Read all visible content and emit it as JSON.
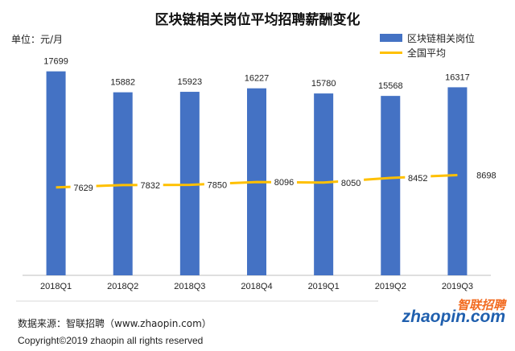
{
  "chart_data": {
    "type": "bar",
    "title": "区块链相关岗位平均招聘薪酬变化",
    "unit_label": "单位：元/月",
    "categories": [
      "2018Q1",
      "2018Q2",
      "2018Q3",
      "2018Q4",
      "2019Q1",
      "2019Q2",
      "2019Q3"
    ],
    "series": [
      {
        "name": "区块链相关岗位",
        "type": "bar",
        "color": "#4472C4",
        "values": [
          17699,
          15882,
          15923,
          16227,
          15780,
          15568,
          16317
        ]
      },
      {
        "name": "全国平均",
        "type": "line",
        "color": "#FFC000",
        "values": [
          7629,
          7832,
          7850,
          8096,
          8050,
          8452,
          8698
        ]
      }
    ],
    "ylim": [
      0,
      19000
    ],
    "grid": false,
    "legend": "top-right"
  },
  "footer": {
    "source": "数据来源：智联招聘（www.zhaopin.com）",
    "copyright": "Copyright©2019 zhaopin all rights reserved"
  },
  "logo": {
    "cn": "智联招聘",
    "en": "zhaopin.com"
  }
}
